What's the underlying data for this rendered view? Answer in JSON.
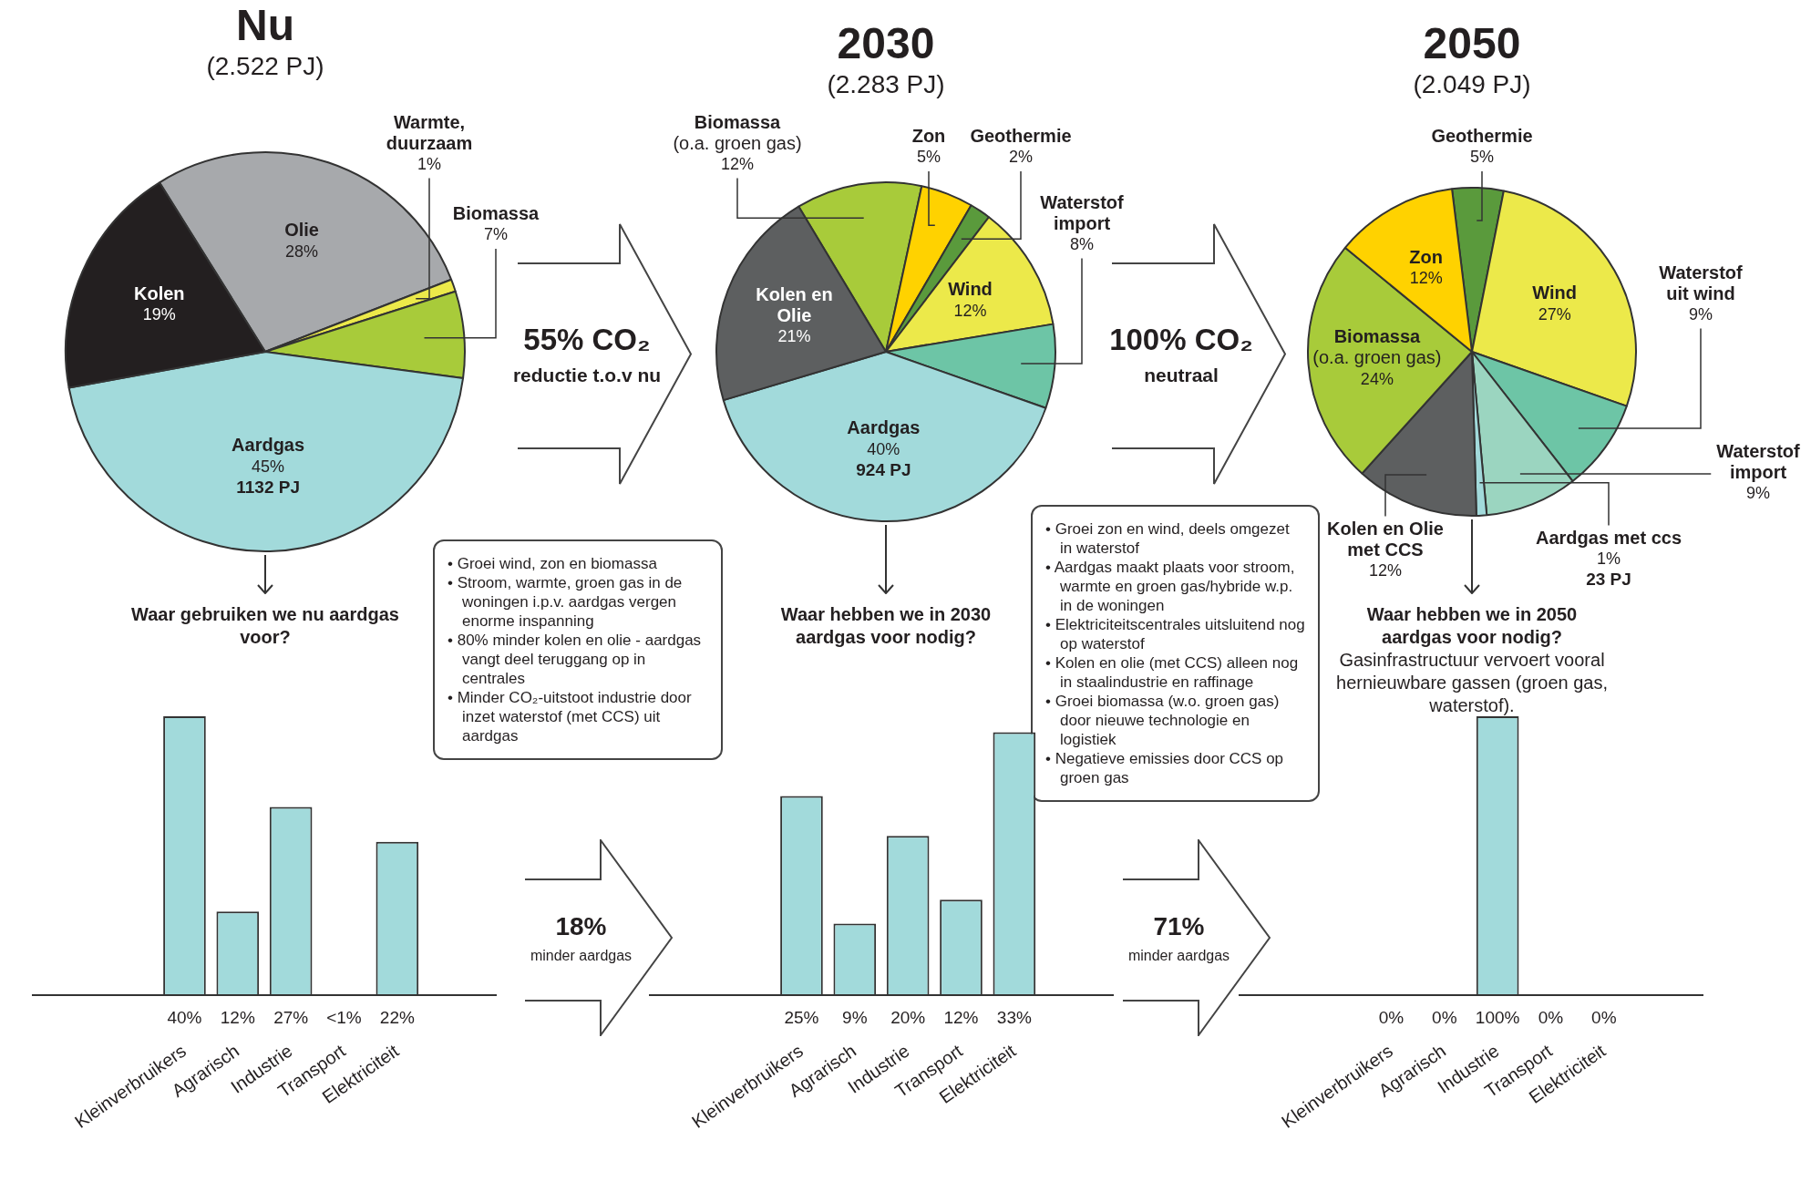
{
  "chart_data": [
    {
      "type": "pie",
      "title": "Nu",
      "subtitle": "(2.522 PJ)",
      "categories": [
        "Olie",
        "Warmte, duurzaam",
        "Biomassa",
        "Aardgas",
        "Kolen"
      ],
      "values": [
        28,
        1,
        7,
        45,
        19
      ],
      "value_labels": [
        "28%",
        "1%",
        "7%",
        "45%",
        "19%"
      ],
      "colors": [
        "#a7a9ac",
        "#ece94a",
        "#a8cb3a",
        "#a2dadb",
        "#231f20"
      ],
      "annotations": [
        {
          "text": "1132 PJ",
          "x": "Aardgas"
        },
        "Waar gebruiken we nu aardgas voor?"
      ]
    },
    {
      "type": "other",
      "title": "55% CO₂",
      "subtitle": "reductie t.o.v nu"
    },
    {
      "type": "pie",
      "title": "2030",
      "subtitle": "(2.283 PJ)",
      "categories": [
        "Biomassa (o.a. groen gas)",
        "Zon",
        "Geothermie",
        "Wind",
        "Waterstof import",
        "Aardgas",
        "Kolen en Olie"
      ],
      "values": [
        12,
        5,
        2,
        12,
        8,
        40,
        21
      ],
      "value_labels": [
        "12%",
        "5%",
        "2%",
        "12%",
        "8%",
        "40%",
        "21%"
      ],
      "colors": [
        "#a8cb3a",
        "#ffd200",
        "#5a9a3c",
        "#ece94a",
        "#6dc5a6",
        "#a2dadb",
        "#5d5f60"
      ],
      "annotations": [
        {
          "text": "924 PJ",
          "x": "Aardgas"
        },
        "Waar hebben we in 2030 aardgas voor nodig?"
      ]
    },
    {
      "type": "other",
      "title": "100% CO₂",
      "subtitle": "neutraal"
    },
    {
      "type": "pie",
      "title": "2050",
      "subtitle": "(2.049 PJ)",
      "categories": [
        "Geothermie",
        "Wind",
        "Waterstof uit wind",
        "Waterstof import",
        "Aardgas met ccs",
        "Kolen en Olie met CCS",
        "Biomassa (o.a. groen gas)",
        "Zon"
      ],
      "values": [
        5,
        27,
        9,
        9,
        1,
        12,
        24,
        12
      ],
      "value_labels": [
        "5%",
        "27%",
        "9%",
        "9%",
        "1%",
        "12%",
        "24%",
        "12%"
      ],
      "colors": [
        "#5a9a3c",
        "#ece94a",
        "#6dc5a6",
        "#9bd5c0",
        "#a2dadb",
        "#5d5f60",
        "#a8cb3a",
        "#ffd200"
      ],
      "annotations": [
        {
          "text": "23 PJ",
          "x": "Aardgas met ccs"
        },
        "Waar hebben we in 2050 aardgas voor nodig?",
        "Gasinfrastructuur vervoert vooral hernieuwbare gassen (groen gas, waterstof)."
      ]
    },
    {
      "type": "other",
      "annotations": [
        "• Groei wind, zon en biomassa",
        "• Stroom, warmte, groen gas in de woningen i.p.v. aardgas vergen enorme inspanning",
        "• 80% minder kolen en olie - aardgas vangt deel teruggang op in centrales",
        "• Minder CO₂-uitstoot industrie door inzet waterstof (met CCS) uit aardgas"
      ]
    },
    {
      "type": "other",
      "annotations": [
        "• Groei zon en wind, deels omgezet in waterstof",
        "• Aardgas maakt plaats voor stroom, warmte en groen gas/hybride w.p. in de woningen",
        "• Elektriciteitscentrales uitsluitend nog op waterstof",
        "• Kolen en olie (met CCS) alleen nog in staalindustrie en raffinage",
        "• Groei biomassa (w.o. groen gas) door nieuwe technologie en logistiek",
        "• Negatieve emissies door CCS op groen gas"
      ]
    },
    {
      "type": "bar",
      "categories": [
        "Kleinverbruikers",
        "Agrarisch",
        "Industrie",
        "Transport",
        "Elektriciteit"
      ],
      "values": [
        40,
        12,
        27,
        0,
        22
      ],
      "value_labels": [
        "40%",
        "12%",
        "27%",
        "<1%",
        "22%"
      ],
      "color": "#a2dadb",
      "tick_labels": "x"
    },
    {
      "type": "other",
      "title": "18%",
      "subtitle": "minder aardgas"
    },
    {
      "type": "bar",
      "categories": [
        "Kleinverbruikers",
        "Agrarisch",
        "Industrie",
        "Transport",
        "Elektriciteit"
      ],
      "values": [
        25,
        9,
        20,
        12,
        33
      ],
      "value_labels": [
        "25%",
        "9%",
        "20%",
        "12%",
        "33%"
      ],
      "color": "#a2dadb",
      "tick_labels": "x"
    },
    {
      "type": "other",
      "title": "71%",
      "subtitle": "minder aardgas"
    },
    {
      "type": "bar",
      "categories": [
        "Kleinverbruikers",
        "Agrarisch",
        "Industrie",
        "Transport",
        "Elektriciteit"
      ],
      "values": [
        0,
        0,
        100,
        0,
        0
      ],
      "value_labels": [
        "0%",
        "0%",
        "100%",
        "0%",
        "0%"
      ],
      "color": "#a2dadb",
      "tick_labels": "x"
    }
  ]
}
